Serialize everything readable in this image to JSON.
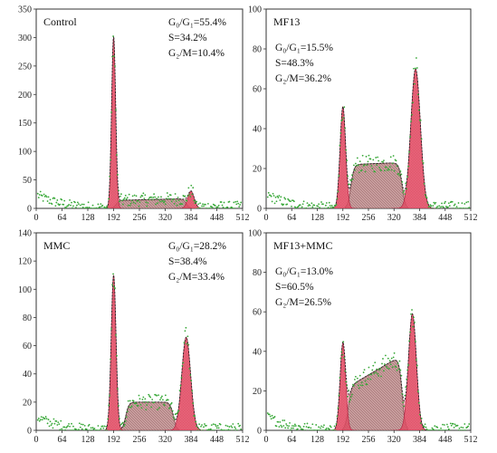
{
  "chart_data": [
    {
      "type": "histogram",
      "title": "Control",
      "annotations": [
        "G₀/G₁=55.4%",
        "S=34.2%",
        "G₂/M=10.4%"
      ],
      "annotation_position": "top-right",
      "xlim": [
        0,
        512
      ],
      "x_ticks": [
        0,
        64,
        128,
        192,
        256,
        320,
        384,
        448,
        512
      ],
      "ylim": [
        0,
        350
      ],
      "y_ticks": [
        0,
        50,
        100,
        150,
        200,
        250,
        300,
        350
      ],
      "components": {
        "g0g1": {
          "center": 192,
          "sigma": 5,
          "peak": 300
        },
        "s_phase": {
          "start": 198,
          "end": 372,
          "start_level": 14,
          "end_level": 17
        },
        "g2m": {
          "center": 384,
          "sigma": 8,
          "peak": 30
        }
      }
    },
    {
      "type": "histogram",
      "title": "MF13",
      "annotations": [
        "G₀/G₁=15.5%",
        "S=48.3%",
        "G₂/M=36.2%"
      ],
      "annotation_position": "top-left",
      "xlim": [
        0,
        512
      ],
      "x_ticks": [
        0,
        64,
        128,
        192,
        256,
        320,
        384,
        448,
        512
      ],
      "ylim": [
        0,
        100
      ],
      "y_ticks": [
        0,
        20,
        40,
        60,
        80,
        100
      ],
      "components": {
        "g0g1": {
          "center": 192,
          "sigma": 7,
          "peak": 51
        },
        "s_phase": {
          "start": 212,
          "end": 340,
          "start_level": 22,
          "end_level": 23
        },
        "g2m": {
          "center": 374,
          "sigma": 12,
          "peak": 70
        }
      }
    },
    {
      "type": "histogram",
      "title": "MMC",
      "annotations": [
        "G₀/G₁=28.2%",
        "S=38.4%",
        "G₂/M=33.4%"
      ],
      "annotation_position": "top-right",
      "xlim": [
        0,
        512
      ],
      "x_ticks": [
        0,
        64,
        128,
        192,
        256,
        320,
        384,
        448,
        512
      ],
      "ylim": [
        0,
        140
      ],
      "y_ticks": [
        0,
        20,
        40,
        60,
        80,
        100,
        120,
        140
      ],
      "components": {
        "g0g1": {
          "center": 192,
          "sigma": 6,
          "peak": 110
        },
        "s_phase": {
          "start": 222,
          "end": 340,
          "start_level": 20,
          "end_level": 20
        },
        "g2m": {
          "center": 372,
          "sigma": 11,
          "peak": 66
        }
      }
    },
    {
      "type": "histogram",
      "title": "MF13+MMC",
      "annotations": [
        "G₀/G₁=13.0%",
        "S=60.5%",
        "G₂/M=26.5%"
      ],
      "annotation_position": "top-left",
      "xlim": [
        0,
        512
      ],
      "x_ticks": [
        0,
        64,
        128,
        192,
        256,
        320,
        384,
        448,
        512
      ],
      "ylim": [
        0,
        100
      ],
      "y_ticks": [
        0,
        20,
        40,
        60,
        80,
        100
      ],
      "components": {
        "g0g1": {
          "center": 192,
          "sigma": 7,
          "peak": 44
        },
        "s_phase": {
          "start": 205,
          "end": 340,
          "start_level": 22,
          "end_level": 38
        },
        "g2m": {
          "center": 366,
          "sigma": 10,
          "peak": 59
        }
      }
    }
  ],
  "colors": {
    "fill": "#e04860",
    "fill_light": "#f0b8c2",
    "s_fill": "#b07878",
    "envelope": "#222222",
    "points": "#38a838",
    "axis": "#333333"
  }
}
